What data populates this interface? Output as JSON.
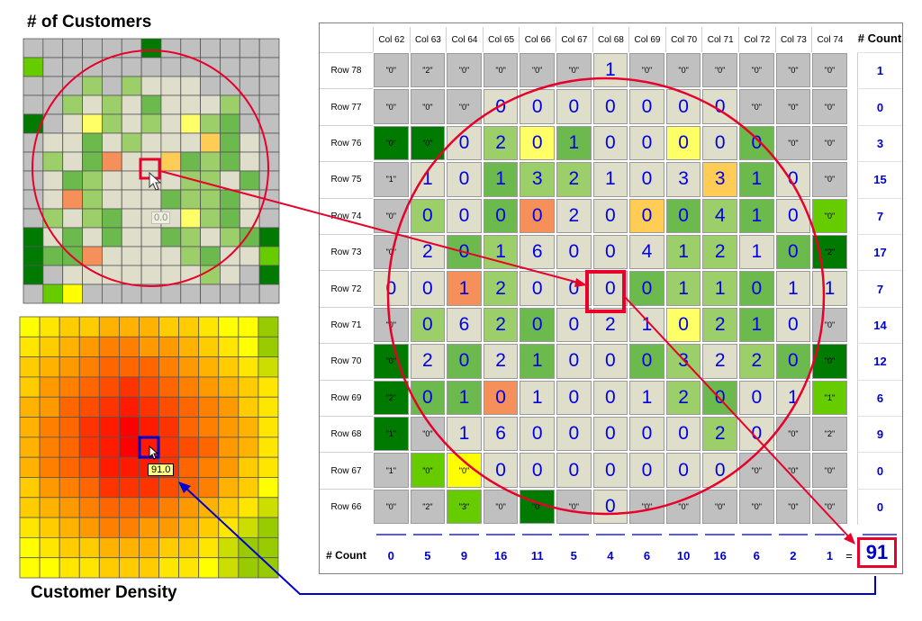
{
  "titles": {
    "customers": "# of Customers",
    "density": "Customer Density"
  },
  "labels": {
    "customers_cursor_value": "0.0",
    "density_cursor_value": "91.0",
    "equals": "="
  },
  "table": {
    "col_headers": [
      "Col 62",
      "Col 63",
      "Col 64",
      "Col 65",
      "Col 66",
      "Col 67",
      "Col 68",
      "Col 69",
      "Col 70",
      "Col 71",
      "Col 72",
      "Col 73",
      "Col 74"
    ],
    "count_header": "# Count",
    "footer_header": "# Count",
    "row_headers": [
      "Row 78",
      "Row 77",
      "Row 76",
      "Row 75",
      "Row 74",
      "Row 73",
      "Row 72",
      "Row 71",
      "Row 70",
      "Row 69",
      "Row 68",
      "Row 67",
      "Row 66"
    ],
    "values": [
      [
        "\"0\"",
        "\"2\"",
        "\"0\"",
        "\"0\"",
        "\"0\"",
        "\"0\"",
        "1",
        "\"0\"",
        "\"0\"",
        "\"0\"",
        "\"0\"",
        "\"0\"",
        "\"0\""
      ],
      [
        "\"0\"",
        "\"0\"",
        "\"0\"",
        "0",
        "0",
        "0",
        "0",
        "0",
        "0",
        "0",
        "\"0\"",
        "\"0\"",
        "\"0\""
      ],
      [
        "\"0\"",
        "\"0\"",
        "0",
        "2",
        "0",
        "1",
        "0",
        "0",
        "0",
        "0",
        "0",
        "\"0\"",
        "\"0\""
      ],
      [
        "\"1\"",
        "1",
        "0",
        "1",
        "3",
        "2",
        "1",
        "0",
        "3",
        "3",
        "1",
        "0",
        "\"0\""
      ],
      [
        "\"0\"",
        "0",
        "0",
        "0",
        "0",
        "2",
        "0",
        "0",
        "0",
        "4",
        "1",
        "0",
        "\"0\""
      ],
      [
        "\"0\"",
        "2",
        "0",
        "1",
        "6",
        "0",
        "0",
        "4",
        "1",
        "2",
        "1",
        "0",
        "\"2\""
      ],
      [
        "0",
        "0",
        "1",
        "2",
        "0",
        "0",
        "0",
        "0",
        "1",
        "1",
        "0",
        "1",
        "1"
      ],
      [
        "\"0\"",
        "0",
        "6",
        "2",
        "0",
        "0",
        "2",
        "1",
        "0",
        "2",
        "1",
        "0",
        "\"0\""
      ],
      [
        "\"0\"",
        "2",
        "0",
        "2",
        "1",
        "0",
        "0",
        "0",
        "3",
        "2",
        "2",
        "0",
        "\"0\""
      ],
      [
        "\"2\"",
        "0",
        "1",
        "0",
        "1",
        "0",
        "0",
        "1",
        "2",
        "0",
        "0",
        "1",
        "\"1\""
      ],
      [
        "\"1\"",
        "\"0\"",
        "1",
        "6",
        "0",
        "0",
        "0",
        "0",
        "0",
        "2",
        "0",
        "\"0\"",
        "\"2\""
      ],
      [
        "\"1\"",
        "\"0\"",
        "\"0\"",
        "0",
        "0",
        "0",
        "0",
        "0",
        "0",
        "0",
        "\"0\"",
        "\"0\"",
        "\"0\""
      ],
      [
        "\"0\"",
        "\"2\"",
        "\"3\"",
        "\"0\"",
        "\"0\"",
        "\"0\"",
        "0",
        "\"0\"",
        "\"0\"",
        "\"0\"",
        "\"0\"",
        "\"0\"",
        "\"0\""
      ]
    ],
    "colors": [
      [
        "#c0c0c0",
        "#c0c0c0",
        "#c0c0c0",
        "#c0c0c0",
        "#c0c0c0",
        "#c0c0c0",
        "#dedecb",
        "#c0c0c0",
        "#c0c0c0",
        "#c0c0c0",
        "#c0c0c0",
        "#c0c0c0",
        "#c0c0c0"
      ],
      [
        "#c0c0c0",
        "#c0c0c0",
        "#c0c0c0",
        "#dedecb",
        "#dedecb",
        "#dedecb",
        "#dedecb",
        "#dedecb",
        "#dedecb",
        "#dedecb",
        "#c0c0c0",
        "#c0c0c0",
        "#c0c0c0"
      ],
      [
        "#007a00",
        "#007a00",
        "#dedecb",
        "#9ccf6a",
        "#ffff66",
        "#6cba4e",
        "#dedecb",
        "#dedecb",
        "#ffff66",
        "#dedecb",
        "#6cba4e",
        "#c0c0c0",
        "#c0c0c0"
      ],
      [
        "#c0c0c0",
        "#dedecb",
        "#dedecb",
        "#6cba4e",
        "#9ccf6a",
        "#9ccf6a",
        "#dedecb",
        "#dedecb",
        "#dedecb",
        "#ffcc55",
        "#6cba4e",
        "#dedecb",
        "#c0c0c0"
      ],
      [
        "#c0c0c0",
        "#9ccf6a",
        "#dedecb",
        "#6cba4e",
        "#f5905a",
        "#dedecb",
        "#dedecb",
        "#ffcc55",
        "#6cba4e",
        "#9ccf6a",
        "#6cba4e",
        "#dedecb",
        "#66cc00"
      ],
      [
        "#c0c0c0",
        "#dedecb",
        "#6cba4e",
        "#9ccf6a",
        "#dedecb",
        "#dedecb",
        "#dedecb",
        "#dedecb",
        "#9ccf6a",
        "#9ccf6a",
        "#dedecb",
        "#6cba4e",
        "#007a00"
      ],
      [
        "#dedecb",
        "#dedecb",
        "#f5905a",
        "#9ccf6a",
        "#dedecb",
        "#dedecb",
        "#dedecb",
        "#6cba4e",
        "#9ccf6a",
        "#9ccf6a",
        "#6cba4e",
        "#dedecb",
        "#dedecb"
      ],
      [
        "#c0c0c0",
        "#9ccf6a",
        "#dedecb",
        "#9ccf6a",
        "#6cba4e",
        "#dedecb",
        "#dedecb",
        "#dedecb",
        "#ffff66",
        "#9ccf6a",
        "#6cba4e",
        "#dedecb",
        "#c0c0c0"
      ],
      [
        "#007a00",
        "#dedecb",
        "#6cba4e",
        "#dedecb",
        "#6cba4e",
        "#dedecb",
        "#dedecb",
        "#6cba4e",
        "#9ccf6a",
        "#dedecb",
        "#9ccf6a",
        "#6cba4e",
        "#007a00"
      ],
      [
        "#007a00",
        "#6cba4e",
        "#6cba4e",
        "#f5905a",
        "#dedecb",
        "#dedecb",
        "#dedecb",
        "#dedecb",
        "#9ccf6a",
        "#6cba4e",
        "#dedecb",
        "#dedecb",
        "#66cc00"
      ],
      [
        "#007a00",
        "#c0c0c0",
        "#dedecb",
        "#dedecb",
        "#dedecb",
        "#dedecb",
        "#dedecb",
        "#dedecb",
        "#dedecb",
        "#9ccf6a",
        "#dedecb",
        "#c0c0c0",
        "#c0c0c0"
      ],
      [
        "#c0c0c0",
        "#66cc00",
        "#ffff00",
        "#dedecb",
        "#dedecb",
        "#dedecb",
        "#dedecb",
        "#dedecb",
        "#dedecb",
        "#dedecb",
        "#c0c0c0",
        "#c0c0c0",
        "#c0c0c0"
      ],
      [
        "#c0c0c0",
        "#c0c0c0",
        "#66cc00",
        "#c0c0c0",
        "#007a00",
        "#c0c0c0",
        "#dedecb",
        "#c0c0c0",
        "#c0c0c0",
        "#c0c0c0",
        "#c0c0c0",
        "#c0c0c0",
        "#c0c0c0"
      ]
    ],
    "row_counts": [
      "1",
      "0",
      "3",
      "15",
      "7",
      "17",
      "7",
      "14",
      "12",
      "6",
      "9",
      "0",
      "0"
    ],
    "col_counts": [
      "0",
      "5",
      "9",
      "16",
      "11",
      "5",
      "4",
      "6",
      "10",
      "16",
      "6",
      "2",
      "1"
    ],
    "total": "91"
  },
  "customers_grid": {
    "colors": [
      [
        "#c0c0c0",
        "#c0c0c0",
        "#c0c0c0",
        "#c0c0c0",
        "#c0c0c0",
        "#c0c0c0",
        "#007a00",
        "#c0c0c0",
        "#c0c0c0",
        "#c0c0c0",
        "#c0c0c0",
        "#c0c0c0",
        "#c0c0c0"
      ],
      [
        "#66cc00",
        "#c0c0c0",
        "#c0c0c0",
        "#c0c0c0",
        "#c0c0c0",
        "#c0c0c0",
        "#c0c0c0",
        "#c0c0c0",
        "#c0c0c0",
        "#c0c0c0",
        "#c0c0c0",
        "#c0c0c0",
        "#c0c0c0"
      ],
      [
        "#c0c0c0",
        "#c0c0c0",
        "#c0c0c0",
        "#9ccf6a",
        "#c0c0c0",
        "#9ccf6a",
        "#dedecb",
        "#dedecb",
        "#dedecb",
        "#c0c0c0",
        "#c0c0c0",
        "#c0c0c0",
        "#c0c0c0"
      ],
      [
        "#c0c0c0",
        "#c0c0c0",
        "#9ccf6a",
        "#dedecb",
        "#9ccf6a",
        "#dedecb",
        "#6cba4e",
        "#dedecb",
        "#dedecb",
        "#dedecb",
        "#9ccf6a",
        "#c0c0c0",
        "#c0c0c0"
      ],
      [
        "#007a00",
        "#c0c0c0",
        "#dedecb",
        "#ffff66",
        "#9ccf6a",
        "#dedecb",
        "#9ccf6a",
        "#dedecb",
        "#ffff66",
        "#9ccf6a",
        "#6cba4e",
        "#c0c0c0",
        "#c0c0c0"
      ],
      [
        "#c0c0c0",
        "#dedecb",
        "#dedecb",
        "#6cba4e",
        "#dedecb",
        "#9ccf6a",
        "#dedecb",
        "#dedecb",
        "#dedecb",
        "#ffcc55",
        "#6cba4e",
        "#dedecb",
        "#c0c0c0"
      ],
      [
        "#c0c0c0",
        "#9ccf6a",
        "#dedecb",
        "#6cba4e",
        "#f5905a",
        "#dedecb",
        "#dedecb",
        "#ffcc55",
        "#6cba4e",
        "#9ccf6a",
        "#6cba4e",
        "#dedecb",
        "#c0c0c0"
      ],
      [
        "#c0c0c0",
        "#dedecb",
        "#6cba4e",
        "#9ccf6a",
        "#dedecb",
        "#dedecb",
        "#dedecb",
        "#dedecb",
        "#9ccf6a",
        "#9ccf6a",
        "#dedecb",
        "#6cba4e",
        "#c0c0c0"
      ],
      [
        "#c0c0c0",
        "#dedecb",
        "#f5905a",
        "#9ccf6a",
        "#dedecb",
        "#dedecb",
        "#dedecb",
        "#6cba4e",
        "#9ccf6a",
        "#9ccf6a",
        "#6cba4e",
        "#dedecb",
        "#c0c0c0"
      ],
      [
        "#c0c0c0",
        "#9ccf6a",
        "#dedecb",
        "#9ccf6a",
        "#6cba4e",
        "#dedecb",
        "#dedecb",
        "#dedecb",
        "#ffff66",
        "#9ccf6a",
        "#6cba4e",
        "#dedecb",
        "#c0c0c0"
      ],
      [
        "#007a00",
        "#dedecb",
        "#6cba4e",
        "#dedecb",
        "#6cba4e",
        "#dedecb",
        "#dedecb",
        "#6cba4e",
        "#9ccf6a",
        "#dedecb",
        "#9ccf6a",
        "#6cba4e",
        "#007a00"
      ],
      [
        "#007a00",
        "#6cba4e",
        "#6cba4e",
        "#f5905a",
        "#dedecb",
        "#dedecb",
        "#dedecb",
        "#dedecb",
        "#9ccf6a",
        "#6cba4e",
        "#dedecb",
        "#dedecb",
        "#66cc00"
      ],
      [
        "#007a00",
        "#c0c0c0",
        "#dedecb",
        "#dedecb",
        "#dedecb",
        "#dedecb",
        "#dedecb",
        "#dedecb",
        "#dedecb",
        "#9ccf6a",
        "#dedecb",
        "#c0c0c0",
        "#007a00"
      ],
      [
        "#c0c0c0",
        "#66cc00",
        "#ffff00",
        "#c0c0c0",
        "#c0c0c0",
        "#c0c0c0",
        "#c0c0c0",
        "#c0c0c0",
        "#c0c0c0",
        "#c0c0c0",
        "#c0c0c0",
        "#c0c0c0",
        "#c0c0c0"
      ]
    ]
  },
  "density_grid": {
    "colors": [
      [
        "#ffff00",
        "#ffe600",
        "#ffcc00",
        "#ffcc00",
        "#ffb300",
        "#ffb300",
        "#ffb300",
        "#ffcc00",
        "#ffcc00",
        "#ffe600",
        "#ffff00",
        "#ffff00",
        "#99cc00"
      ],
      [
        "#ffe600",
        "#ffcc00",
        "#ffb300",
        "#ff9900",
        "#ff8000",
        "#ff8000",
        "#ff9900",
        "#ff9900",
        "#ffb300",
        "#ffcc00",
        "#ffe600",
        "#ffff00",
        "#99cc00"
      ],
      [
        "#ffcc00",
        "#ffb300",
        "#ff9900",
        "#ff8000",
        "#ff6600",
        "#ff6600",
        "#ff6600",
        "#ff8000",
        "#ff9900",
        "#ffb300",
        "#ffcc00",
        "#ffe600",
        "#ccdd00"
      ],
      [
        "#ffcc00",
        "#ff9900",
        "#ff8000",
        "#ff6600",
        "#ff4d00",
        "#ff3300",
        "#ff4d00",
        "#ff6600",
        "#ff8000",
        "#ff9900",
        "#ffb300",
        "#ffcc00",
        "#ffe600"
      ],
      [
        "#ffb300",
        "#ff9900",
        "#ff6600",
        "#ff4d00",
        "#ff3300",
        "#ff1a00",
        "#ff3300",
        "#ff4d00",
        "#ff6600",
        "#ff8000",
        "#ff9900",
        "#ffcc00",
        "#ffe600"
      ],
      [
        "#ffb300",
        "#ff8000",
        "#ff6600",
        "#ff3300",
        "#ff1a00",
        "#ff0000",
        "#ff1a00",
        "#ff3300",
        "#ff6600",
        "#ff8000",
        "#ff9900",
        "#ffb300",
        "#ffe600"
      ],
      [
        "#ffb300",
        "#ff8000",
        "#ff6600",
        "#ff3300",
        "#ff1a00",
        "#ff0000",
        "#ff1a00",
        "#ff3300",
        "#ff4d00",
        "#ff6600",
        "#ff9900",
        "#ffb300",
        "#ffe600"
      ],
      [
        "#ffb300",
        "#ff8000",
        "#ff6600",
        "#ff4d00",
        "#ff1a00",
        "#ff1a00",
        "#ff1a00",
        "#ff3300",
        "#ff6600",
        "#ff8000",
        "#ff9900",
        "#ffcc00",
        "#ffe600"
      ],
      [
        "#ffcc00",
        "#ff9900",
        "#ff8000",
        "#ff6600",
        "#ff3300",
        "#ff3300",
        "#ff3300",
        "#ff4d00",
        "#ff6600",
        "#ff8000",
        "#ffb300",
        "#ffcc00",
        "#ffff00"
      ],
      [
        "#ffcc00",
        "#ffb300",
        "#ff9900",
        "#ff8000",
        "#ff6600",
        "#ff6600",
        "#ff6600",
        "#ff8000",
        "#ff9900",
        "#ffb300",
        "#ffcc00",
        "#ffe600",
        "#ccdd00"
      ],
      [
        "#ffe600",
        "#ffcc00",
        "#ffb300",
        "#ff9900",
        "#ff8000",
        "#ff8000",
        "#ff9900",
        "#ff9900",
        "#ffb300",
        "#ffcc00",
        "#ffe600",
        "#ccdd00",
        "#99cc00"
      ],
      [
        "#ffff00",
        "#ffe600",
        "#ffcc00",
        "#ffcc00",
        "#ffb300",
        "#ffb300",
        "#ffb300",
        "#ffcc00",
        "#ffcc00",
        "#ffe600",
        "#ccdd00",
        "#99cc00",
        "#99cc00"
      ],
      [
        "#ffff00",
        "#ffff00",
        "#ffe600",
        "#ffe600",
        "#ffcc00",
        "#ffcc00",
        "#ffcc00",
        "#ffe600",
        "#ffe600",
        "#ffff00",
        "#ccdd00",
        "#99cc00",
        "#99cc00"
      ]
    ]
  },
  "colors": {
    "highlight_red": "#e8002a",
    "highlight_blue": "#0000cc",
    "value_blue": "#0000e6"
  }
}
